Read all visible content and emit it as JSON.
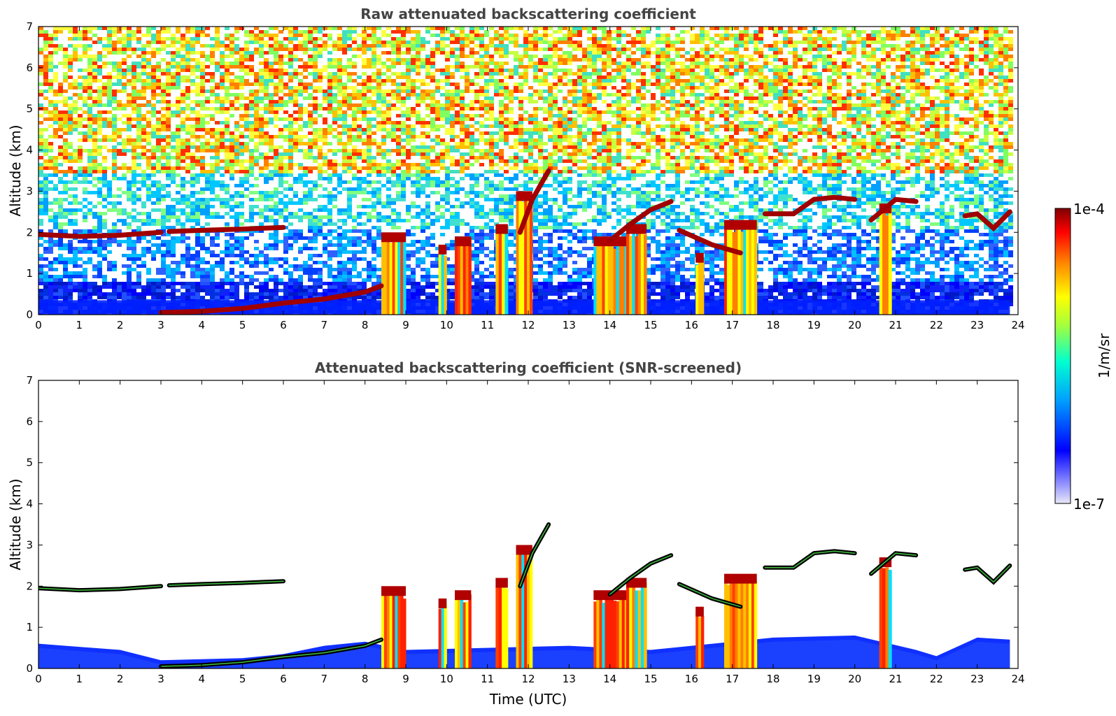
{
  "chart_data": [
    {
      "type": "heatmap",
      "title": "Raw attenuated backscattering coefficient",
      "xlabel": "",
      "ylabel": "Altitude (km)",
      "xlim": [
        0,
        24
      ],
      "ylim": [
        0,
        7
      ],
      "x_ticks": [
        "0",
        "1",
        "2",
        "3",
        "4",
        "5",
        "6",
        "7",
        "8",
        "9",
        "10",
        "11",
        "12",
        "13",
        "14",
        "15",
        "16",
        "17",
        "18",
        "19",
        "20",
        "21",
        "22",
        "23",
        "24"
      ],
      "y_ticks": [
        "0",
        "1",
        "2",
        "3",
        "4",
        "5",
        "6",
        "7"
      ],
      "data_end_time": 23.8,
      "layers": [
        {
          "name": "aerosol-layer-1",
          "x": [
            0,
            1,
            2,
            3
          ],
          "y": [
            1.95,
            1.9,
            1.93,
            2.0
          ]
        },
        {
          "name": "aerosol-layer-2",
          "x": [
            3.2,
            4,
            5,
            6
          ],
          "y": [
            2.02,
            2.05,
            2.08,
            2.12
          ]
        },
        {
          "name": "boundary-top",
          "x": [
            3,
            4,
            5,
            6,
            7,
            8,
            8.4
          ],
          "y": [
            0.05,
            0.08,
            0.15,
            0.28,
            0.38,
            0.55,
            0.7
          ]
        },
        {
          "name": "cloud-12h",
          "x": [
            11.8,
            12.1,
            12.5
          ],
          "y": [
            2.0,
            2.8,
            3.5
          ]
        },
        {
          "name": "cloud-14h",
          "x": [
            14,
            14.5,
            15,
            15.5
          ],
          "y": [
            1.8,
            2.2,
            2.55,
            2.75
          ]
        },
        {
          "name": "cloud-16h",
          "x": [
            15.7,
            16.5,
            17.2
          ],
          "y": [
            2.05,
            1.7,
            1.5
          ]
        },
        {
          "name": "cloud-18h",
          "x": [
            17.8,
            18.5,
            19,
            19.5,
            20
          ],
          "y": [
            2.45,
            2.45,
            2.8,
            2.85,
            2.8
          ]
        },
        {
          "name": "cloud-21h",
          "x": [
            20.4,
            21,
            21.5
          ],
          "y": [
            2.3,
            2.8,
            2.75
          ]
        },
        {
          "name": "cloud-23h",
          "x": [
            22.7,
            23,
            23.4,
            23.8
          ],
          "y": [
            2.4,
            2.45,
            2.1,
            2.5
          ]
        }
      ],
      "precip_columns": [
        {
          "start": 8.4,
          "end": 9.0,
          "top": 2.0
        },
        {
          "start": 9.8,
          "end": 10.0,
          "top": 1.7
        },
        {
          "start": 10.2,
          "end": 10.6,
          "top": 1.9
        },
        {
          "start": 11.2,
          "end": 11.5,
          "top": 2.2
        },
        {
          "start": 11.7,
          "end": 12.1,
          "top": 3.0
        },
        {
          "start": 13.6,
          "end": 14.5,
          "top": 1.9
        },
        {
          "start": 14.4,
          "end": 14.9,
          "top": 2.2
        },
        {
          "start": 16.1,
          "end": 16.3,
          "top": 1.5
        },
        {
          "start": 16.8,
          "end": 17.6,
          "top": 2.3
        },
        {
          "start": 20.6,
          "end": 20.9,
          "top": 2.7
        }
      ]
    },
    {
      "type": "heatmap",
      "title": "Attenuated backscattering coefficient (SNR-screened)",
      "xlabel": "Time (UTC)",
      "ylabel": "Altitude (km)",
      "xlim": [
        0,
        24
      ],
      "ylim": [
        0,
        7
      ],
      "x_ticks": [
        "0",
        "1",
        "2",
        "3",
        "4",
        "5",
        "6",
        "7",
        "8",
        "9",
        "10",
        "11",
        "12",
        "13",
        "14",
        "15",
        "16",
        "17",
        "18",
        "19",
        "20",
        "21",
        "22",
        "23",
        "24"
      ],
      "y_ticks": [
        "0",
        "1",
        "2",
        "3",
        "4",
        "5",
        "6",
        "7"
      ],
      "data_end_time": 23.8
    }
  ],
  "colorbar": {
    "label": "1/m/sr",
    "min_label": "1e-7",
    "max_label": "1e-4",
    "colormap": [
      "#e8e8f8",
      "#0000ff",
      "#00a0ff",
      "#00ffd0",
      "#a0ff40",
      "#ffff00",
      "#ff8000",
      "#ff0000",
      "#800000"
    ]
  }
}
